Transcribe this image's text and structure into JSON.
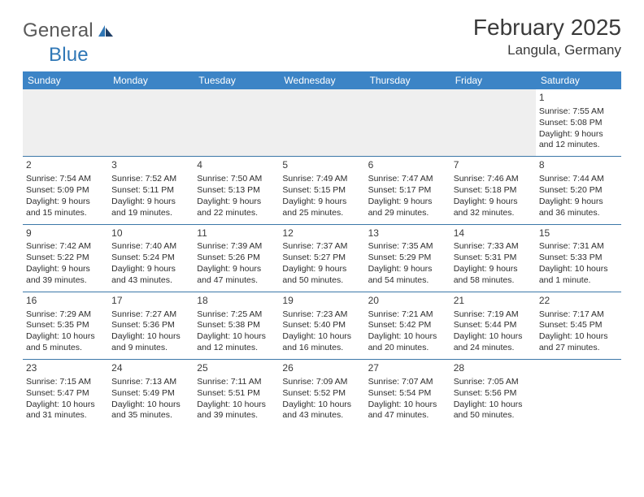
{
  "brand": {
    "part1": "General",
    "part2": "Blue"
  },
  "title": "February 2025",
  "location": "Langula, Germany",
  "colors": {
    "header_bg": "#3c84c6",
    "header_text": "#ffffff",
    "row_divider": "#3c78a8",
    "empty_bg": "#efefef",
    "brand_gray": "#5a5a5a",
    "brand_blue": "#2f77b6",
    "text": "#2d2d2d"
  },
  "days_of_week": [
    "Sunday",
    "Monday",
    "Tuesday",
    "Wednesday",
    "Thursday",
    "Friday",
    "Saturday"
  ],
  "weeks": [
    [
      null,
      null,
      null,
      null,
      null,
      null,
      {
        "n": "1",
        "sr": "Sunrise: 7:55 AM",
        "ss": "Sunset: 5:08 PM",
        "d1": "Daylight: 9 hours",
        "d2": "and 12 minutes."
      }
    ],
    [
      {
        "n": "2",
        "sr": "Sunrise: 7:54 AM",
        "ss": "Sunset: 5:09 PM",
        "d1": "Daylight: 9 hours",
        "d2": "and 15 minutes."
      },
      {
        "n": "3",
        "sr": "Sunrise: 7:52 AM",
        "ss": "Sunset: 5:11 PM",
        "d1": "Daylight: 9 hours",
        "d2": "and 19 minutes."
      },
      {
        "n": "4",
        "sr": "Sunrise: 7:50 AM",
        "ss": "Sunset: 5:13 PM",
        "d1": "Daylight: 9 hours",
        "d2": "and 22 minutes."
      },
      {
        "n": "5",
        "sr": "Sunrise: 7:49 AM",
        "ss": "Sunset: 5:15 PM",
        "d1": "Daylight: 9 hours",
        "d2": "and 25 minutes."
      },
      {
        "n": "6",
        "sr": "Sunrise: 7:47 AM",
        "ss": "Sunset: 5:17 PM",
        "d1": "Daylight: 9 hours",
        "d2": "and 29 minutes."
      },
      {
        "n": "7",
        "sr": "Sunrise: 7:46 AM",
        "ss": "Sunset: 5:18 PM",
        "d1": "Daylight: 9 hours",
        "d2": "and 32 minutes."
      },
      {
        "n": "8",
        "sr": "Sunrise: 7:44 AM",
        "ss": "Sunset: 5:20 PM",
        "d1": "Daylight: 9 hours",
        "d2": "and 36 minutes."
      }
    ],
    [
      {
        "n": "9",
        "sr": "Sunrise: 7:42 AM",
        "ss": "Sunset: 5:22 PM",
        "d1": "Daylight: 9 hours",
        "d2": "and 39 minutes."
      },
      {
        "n": "10",
        "sr": "Sunrise: 7:40 AM",
        "ss": "Sunset: 5:24 PM",
        "d1": "Daylight: 9 hours",
        "d2": "and 43 minutes."
      },
      {
        "n": "11",
        "sr": "Sunrise: 7:39 AM",
        "ss": "Sunset: 5:26 PM",
        "d1": "Daylight: 9 hours",
        "d2": "and 47 minutes."
      },
      {
        "n": "12",
        "sr": "Sunrise: 7:37 AM",
        "ss": "Sunset: 5:27 PM",
        "d1": "Daylight: 9 hours",
        "d2": "and 50 minutes."
      },
      {
        "n": "13",
        "sr": "Sunrise: 7:35 AM",
        "ss": "Sunset: 5:29 PM",
        "d1": "Daylight: 9 hours",
        "d2": "and 54 minutes."
      },
      {
        "n": "14",
        "sr": "Sunrise: 7:33 AM",
        "ss": "Sunset: 5:31 PM",
        "d1": "Daylight: 9 hours",
        "d2": "and 58 minutes."
      },
      {
        "n": "15",
        "sr": "Sunrise: 7:31 AM",
        "ss": "Sunset: 5:33 PM",
        "d1": "Daylight: 10 hours",
        "d2": "and 1 minute."
      }
    ],
    [
      {
        "n": "16",
        "sr": "Sunrise: 7:29 AM",
        "ss": "Sunset: 5:35 PM",
        "d1": "Daylight: 10 hours",
        "d2": "and 5 minutes."
      },
      {
        "n": "17",
        "sr": "Sunrise: 7:27 AM",
        "ss": "Sunset: 5:36 PM",
        "d1": "Daylight: 10 hours",
        "d2": "and 9 minutes."
      },
      {
        "n": "18",
        "sr": "Sunrise: 7:25 AM",
        "ss": "Sunset: 5:38 PM",
        "d1": "Daylight: 10 hours",
        "d2": "and 12 minutes."
      },
      {
        "n": "19",
        "sr": "Sunrise: 7:23 AM",
        "ss": "Sunset: 5:40 PM",
        "d1": "Daylight: 10 hours",
        "d2": "and 16 minutes."
      },
      {
        "n": "20",
        "sr": "Sunrise: 7:21 AM",
        "ss": "Sunset: 5:42 PM",
        "d1": "Daylight: 10 hours",
        "d2": "and 20 minutes."
      },
      {
        "n": "21",
        "sr": "Sunrise: 7:19 AM",
        "ss": "Sunset: 5:44 PM",
        "d1": "Daylight: 10 hours",
        "d2": "and 24 minutes."
      },
      {
        "n": "22",
        "sr": "Sunrise: 7:17 AM",
        "ss": "Sunset: 5:45 PM",
        "d1": "Daylight: 10 hours",
        "d2": "and 27 minutes."
      }
    ],
    [
      {
        "n": "23",
        "sr": "Sunrise: 7:15 AM",
        "ss": "Sunset: 5:47 PM",
        "d1": "Daylight: 10 hours",
        "d2": "and 31 minutes."
      },
      {
        "n": "24",
        "sr": "Sunrise: 7:13 AM",
        "ss": "Sunset: 5:49 PM",
        "d1": "Daylight: 10 hours",
        "d2": "and 35 minutes."
      },
      {
        "n": "25",
        "sr": "Sunrise: 7:11 AM",
        "ss": "Sunset: 5:51 PM",
        "d1": "Daylight: 10 hours",
        "d2": "and 39 minutes."
      },
      {
        "n": "26",
        "sr": "Sunrise: 7:09 AM",
        "ss": "Sunset: 5:52 PM",
        "d1": "Daylight: 10 hours",
        "d2": "and 43 minutes."
      },
      {
        "n": "27",
        "sr": "Sunrise: 7:07 AM",
        "ss": "Sunset: 5:54 PM",
        "d1": "Daylight: 10 hours",
        "d2": "and 47 minutes."
      },
      {
        "n": "28",
        "sr": "Sunrise: 7:05 AM",
        "ss": "Sunset: 5:56 PM",
        "d1": "Daylight: 10 hours",
        "d2": "and 50 minutes."
      },
      null
    ]
  ]
}
